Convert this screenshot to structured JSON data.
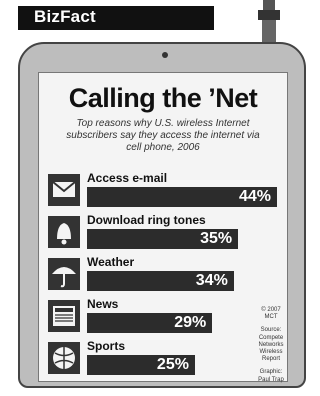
{
  "brand": "BizFact",
  "chart_data": {
    "type": "bar",
    "title": "Calling the ’Net",
    "subtitle": "Top reasons why U.S. wireless Internet subscribers say they access the internet via cell phone, 2006",
    "categories": [
      "Access e-mail",
      "Download ring tones",
      "Weather",
      "News",
      "Sports"
    ],
    "values": [
      44,
      35,
      34,
      29,
      25
    ],
    "value_labels": [
      "44%",
      "35%",
      "34%",
      "29%",
      "25%"
    ],
    "icons": [
      "envelope-icon",
      "bell-icon",
      "umbrella-icon",
      "newspaper-icon",
      "ball-icon"
    ],
    "xlim": [
      0,
      44
    ],
    "bar_color": "#2c2c2c"
  },
  "source": {
    "copyright": "© 2007 MCT",
    "text": "Source: Compete Networks Wireless Report",
    "graphic": "Graphic: Paul Trap"
  }
}
